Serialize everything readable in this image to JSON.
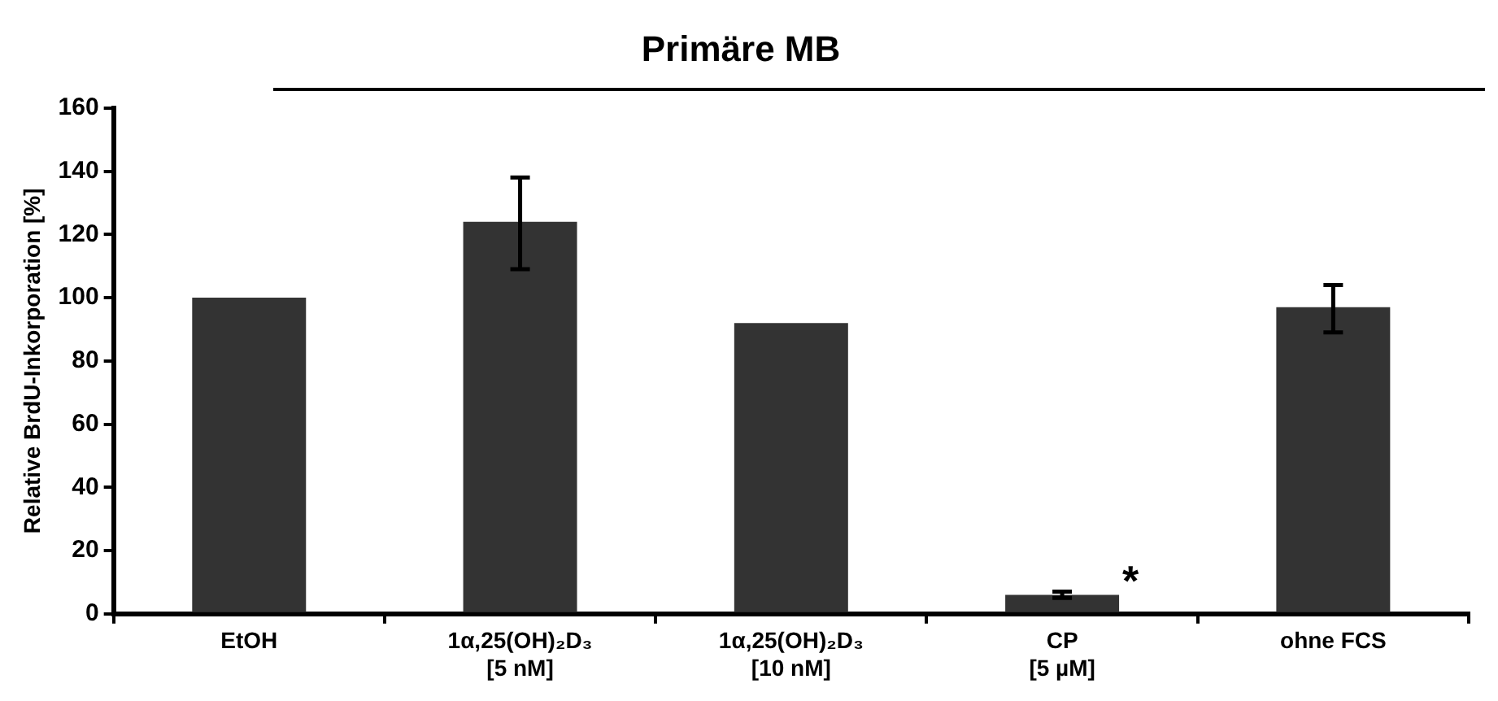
{
  "chart_data": {
    "type": "bar",
    "title": "Primäre MB",
    "ylabel": "Relative BrdU-Inkorporation [%]",
    "categories": [
      "EtOH",
      "1α,25(OH)₂D₃\n[5 nM]",
      "1α,25(OH)₂D₃\n[10 nM]",
      "CP\n[5 µM]",
      "ohne FCS"
    ],
    "values": [
      100,
      124,
      92,
      6,
      97
    ],
    "errors": [
      null,
      [
        109,
        138
      ],
      null,
      [
        5,
        7
      ],
      [
        89,
        104
      ]
    ],
    "color": "#333333",
    "ylim": [
      0,
      160
    ],
    "yticks": [
      0,
      20,
      40,
      60,
      80,
      100,
      120,
      140,
      160
    ],
    "grid": false,
    "legend": false,
    "annotations": [
      {
        "text": "*",
        "x": "CP\n[5 µM]",
        "y": 6
      }
    ]
  }
}
